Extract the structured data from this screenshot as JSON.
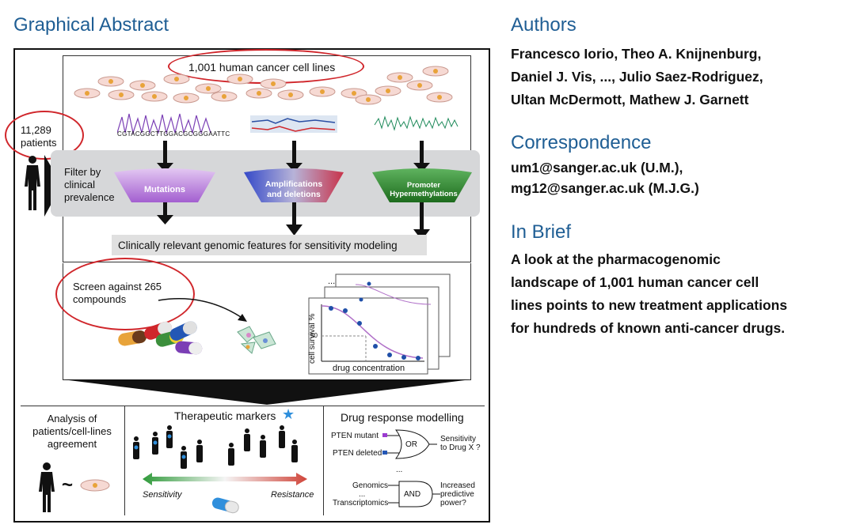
{
  "left": {
    "heading": "Graphical Abstract",
    "cell_lines_label": "1,001 human cancer cell lines",
    "dna_sequence": "CGTACGGCTTGGACGCGGGAATTC",
    "patients_count": "11,289",
    "patients_word": "patients",
    "filter_label": [
      "Filter by",
      "clinical",
      "prevalence"
    ],
    "features": {
      "mutations": "Mutations",
      "amplifications": [
        "Amplifications",
        "and deletions"
      ],
      "promoter": [
        "Promoter",
        "Hypermethylations"
      ]
    },
    "relevant_label": "Clinically relevant genomic features for sensitivity modeling",
    "screen_label": [
      "Screen against 265",
      "compounds"
    ],
    "plot": {
      "y_label": "cell survival %",
      "y_tick": "50",
      "x_label": "drug concentration",
      "ellipsis": "..."
    },
    "bottom": {
      "analysis": [
        "Analysis of",
        "patients/cell-lines",
        "agreement"
      ],
      "tilde": "~",
      "therapeutic": "Therapeutic markers",
      "sensitivity": "Sensitivity",
      "resistance": "Resistance",
      "drug_response": "Drug response modelling",
      "pten_mutant": "PTEN mutant",
      "pten_deleted": "PTEN deleted",
      "or": "OR",
      "sens_q": [
        "Sensitivity",
        "to Drug X ?"
      ],
      "dots": "...",
      "genomics": "Genomics",
      "transcriptomics": "Transcriptomics",
      "and": "AND",
      "increased": [
        "Increased",
        "predictive",
        "power?"
      ]
    }
  },
  "right": {
    "authors_heading": "Authors",
    "authors": [
      "Francesco Iorio, Theo A. Knijnenburg,",
      "Daniel J. Vis, ..., Julio Saez-Rodriguez,",
      "Ultan McDermott, Mathew J. Garnett"
    ],
    "correspondence_heading": "Correspondence",
    "correspondence": [
      "um1@sanger.ac.uk (U.M.),",
      "mg12@sanger.ac.uk (M.J.G.)"
    ],
    "brief_heading": "In Brief",
    "brief": [
      "A look at the pharmacogenomic",
      "landscape of 1,001 human cancer cell",
      "lines points to new treatment applications",
      "for hundreds of known anti-cancer drugs."
    ]
  },
  "colors": {
    "heading": "#1f5e94",
    "annotation": "#d0262b",
    "mutations": "#a35fd0",
    "amplifications": "#c8334a",
    "promoter": "#1d6b1d"
  }
}
